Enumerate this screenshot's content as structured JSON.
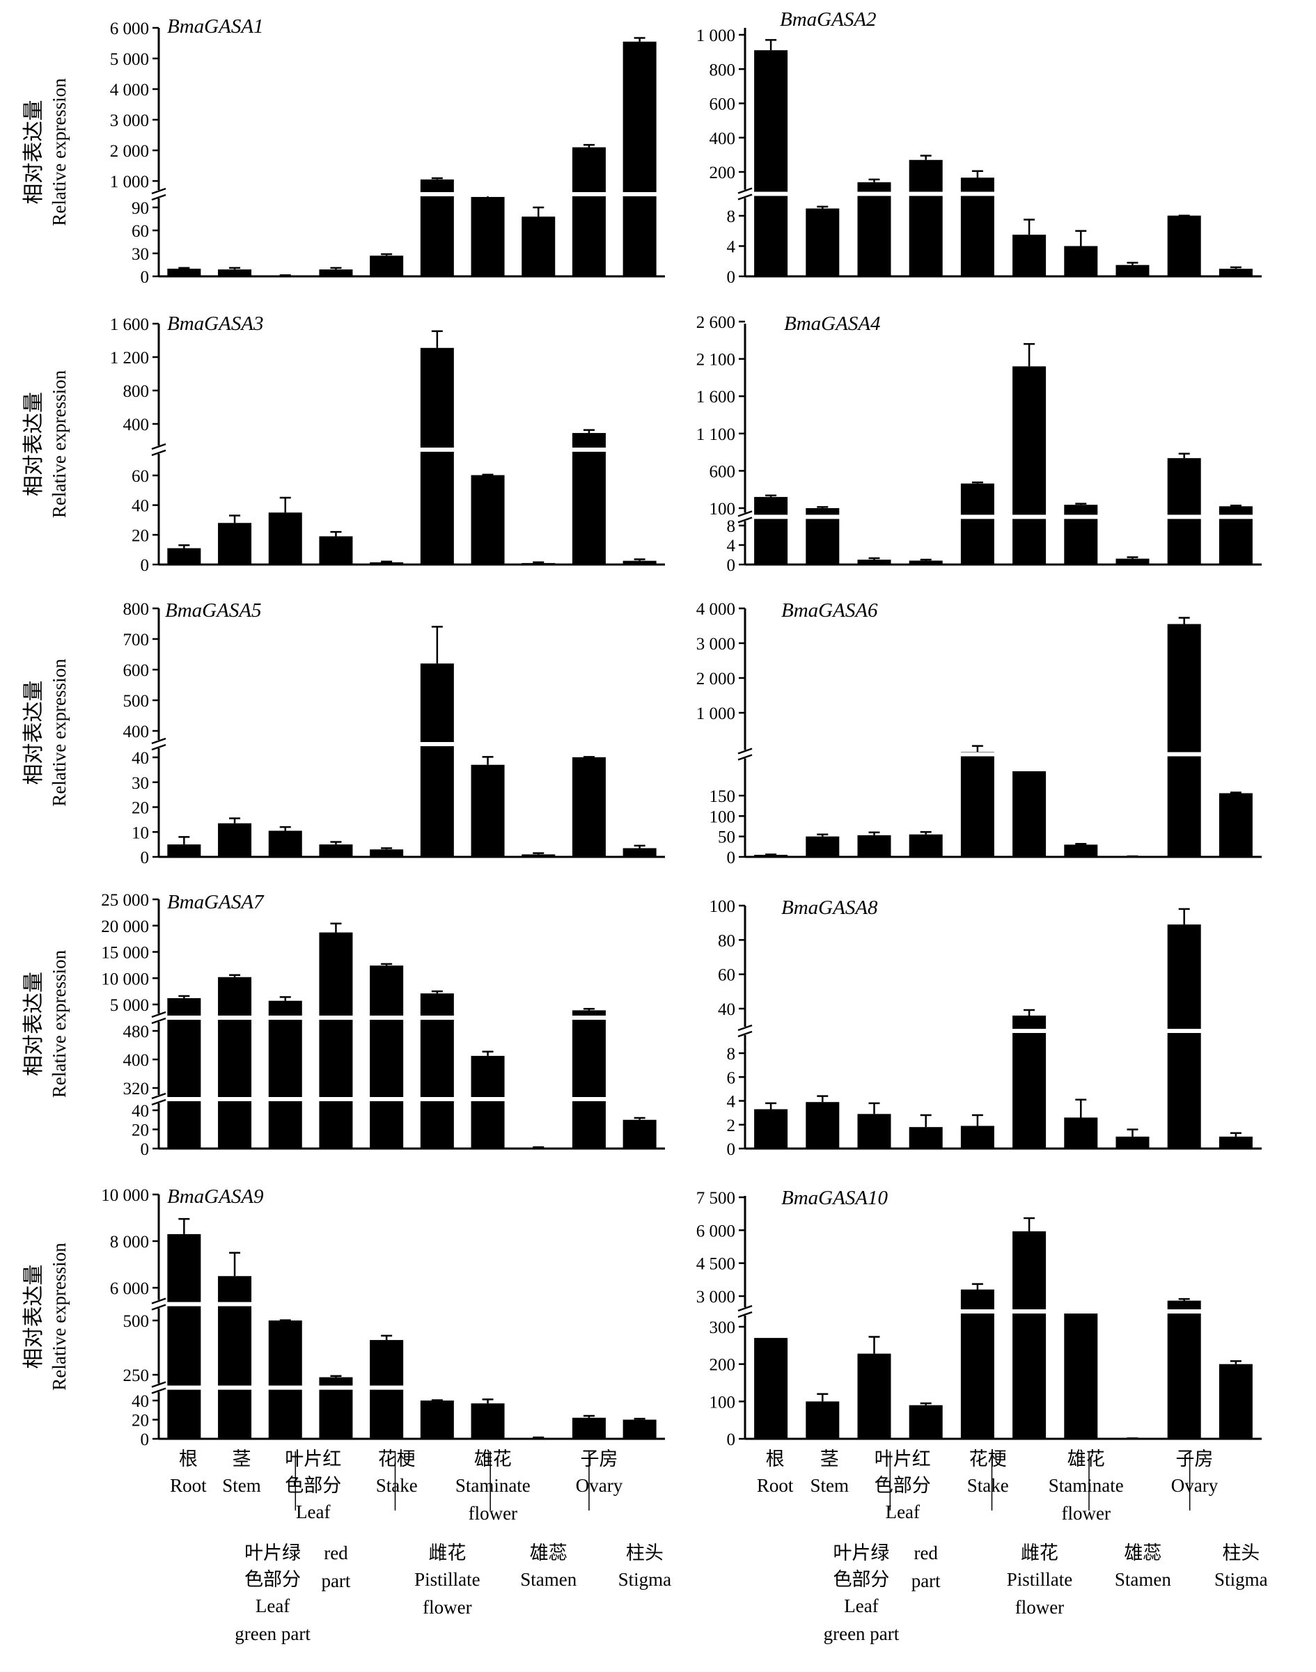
{
  "chart_data": [
    {
      "type": "bar",
      "title": "BmaGASA1",
      "ylabel_cn": "相对表达量",
      "ylabel_en": "Relative expression",
      "categories": [
        "Root",
        "Stem",
        "Leaf green part",
        "Leaf red part",
        "Stake",
        "Pistillate flower",
        "Staminate flower",
        "Stamen",
        "Ovary",
        "Stigma"
      ],
      "values": [
        10,
        9,
        1,
        9,
        27,
        1050,
        450,
        78,
        2100,
        5550
      ],
      "errors": [
        1,
        2,
        0.5,
        2,
        2,
        40,
        60,
        12,
        80,
        120
      ],
      "yticks_lower": [
        "0",
        "30",
        "60",
        "90"
      ],
      "yticks_upper": [
        "1 000",
        "2 000",
        "3 000",
        "4 000",
        "5 000",
        "6 000"
      ],
      "axis_break": [
        100,
        500
      ]
    },
    {
      "type": "bar",
      "title": "BmaGASA2",
      "ylabel_cn": "",
      "ylabel_en": "",
      "categories": [
        "Root",
        "Stem",
        "Leaf green part",
        "Leaf red part",
        "Stake",
        "Pistillate flower",
        "Staminate flower",
        "Stamen",
        "Ovary",
        "Stigma"
      ],
      "values": [
        910,
        40,
        155,
        270,
        175,
        5.5,
        4,
        1.5,
        8.8,
        1
      ],
      "errors": [
        60,
        8,
        12,
        25,
        30,
        2,
        2,
        0.3,
        0.1,
        0.2
      ],
      "yticks_lower": [
        "0",
        "4",
        "8"
      ],
      "yticks_upper": [
        "200",
        "400",
        "600",
        "800",
        "1 000"
      ],
      "axis_break": [
        10,
        100
      ]
    },
    {
      "type": "bar",
      "title": "BmaGASA3",
      "ylabel_cn": "相对表达量",
      "ylabel_en": "Relative expression",
      "categories": [
        "Root",
        "Stem",
        "Leaf green part",
        "Leaf red part",
        "Stake",
        "Pistillate flower",
        "Staminate flower",
        "Stamen",
        "Ovary",
        "Stigma"
      ],
      "values": [
        11,
        28,
        35,
        19,
        1.5,
        1310,
        62,
        1,
        340,
        2.5
      ],
      "errors": [
        2,
        5,
        10,
        3,
        0.5,
        200,
        3,
        0.5,
        20,
        1
      ],
      "yticks_lower": [
        "0",
        "20",
        "40",
        "60"
      ],
      "yticks_upper": [
        "400",
        "800",
        "1 200",
        "1 600"
      ],
      "axis_break": [
        70,
        250
      ]
    },
    {
      "type": "bar",
      "title": "BmaGASA4",
      "ylabel_cn": "",
      "ylabel_en": "",
      "categories": [
        "Root",
        "Stem",
        "Leaf green part",
        "Leaf red part",
        "Stake",
        "Pistillate flower",
        "Staminate flower",
        "Stamen",
        "Ovary",
        "Stigma"
      ],
      "values": [
        250,
        100,
        1,
        0.8,
        430,
        2000,
        145,
        1.2,
        770,
        125
      ],
      "errors": [
        20,
        15,
        0.3,
        0.2,
        15,
        300,
        15,
        0.3,
        60,
        10
      ],
      "yticks_lower": [
        "0",
        "4",
        "8"
      ],
      "yticks_upper": [
        "100",
        "600",
        "1 100",
        "1 600",
        "2 100",
        "2 600"
      ],
      "axis_break": [
        10,
        100
      ]
    },
    {
      "type": "bar",
      "title": "BmaGASA5",
      "ylabel_cn": "相对表达量",
      "ylabel_en": "Relative expression",
      "categories": [
        "Root",
        "Stem",
        "Leaf green part",
        "Leaf red part",
        "Stake",
        "Pistillate flower",
        "Staminate flower",
        "Stamen",
        "Ovary",
        "Stigma"
      ],
      "values": [
        5,
        13.5,
        10.5,
        5,
        3,
        620,
        37,
        1,
        41.5,
        3.5
      ],
      "errors": [
        3,
        2,
        1.5,
        1,
        0.5,
        120,
        9,
        0.5,
        5,
        1
      ],
      "yticks_lower": [
        "0",
        "10",
        "20",
        "30",
        "40"
      ],
      "yticks_upper": [
        "400",
        "500",
        "600",
        "700",
        "800"
      ],
      "axis_break": [
        48,
        400
      ]
    },
    {
      "type": "bar",
      "title": "BmaGASA6",
      "ylabel_cn": "",
      "ylabel_en": "",
      "categories": [
        "Root",
        "Stem",
        "Leaf green part",
        "Leaf red part",
        "Stake",
        "Pistillate flower",
        "Staminate flower",
        "Stamen",
        "Ovary",
        "Stigma"
      ],
      "values": [
        5,
        50,
        53,
        55,
        600,
        400,
        30,
        1,
        3550,
        175
      ],
      "errors": [
        1,
        5,
        7,
        6,
        60,
        0,
        2,
        0.5,
        180,
        7
      ],
      "yticks_lower": [
        "0",
        "50",
        "100",
        "150"
      ],
      "yticks_upper": [
        "1 000",
        "2 000",
        "3 000",
        "4 000"
      ],
      "axis_break": [
        195,
        400
      ]
    },
    {
      "type": "bar",
      "title": "BmaGASA7",
      "ylabel_cn": "相对表达量",
      "ylabel_en": "Relative expression",
      "categories": [
        "Root",
        "Stem",
        "Leaf green part",
        "Leaf red part",
        "Stake",
        "Pistillate flower",
        "Staminate flower",
        "Stamen",
        "Ovary",
        "Stigma"
      ],
      "values": [
        6200,
        10200,
        5700,
        18700,
        12400,
        7100,
        410,
        1,
        4000,
        30
      ],
      "errors": [
        400,
        400,
        700,
        1700,
        300,
        400,
        12,
        0.5,
        250,
        2
      ],
      "yticks_lower": [
        "0",
        "20",
        "40"
      ],
      "yticks_mid": [
        "320",
        "400",
        "480"
      ],
      "yticks_upper": [
        "5 000",
        "10 000",
        "15 000",
        "20 000",
        "25 000"
      ],
      "axis_break": [
        [
          50,
          300
        ],
        [
          490,
          2000
        ]
      ]
    },
    {
      "type": "bar",
      "title": "BmaGASA8",
      "ylabel_cn": "",
      "ylabel_en": "",
      "categories": [
        "Root",
        "Stem",
        "Leaf green part",
        "Leaf red part",
        "Stake",
        "Pistillate flower",
        "Staminate flower",
        "Stamen",
        "Ovary",
        "Stigma"
      ],
      "values": [
        3.3,
        3.9,
        2.9,
        1.8,
        1.9,
        35,
        2.6,
        1,
        89,
        1
      ],
      "errors": [
        0.5,
        0.5,
        0.9,
        1,
        0.9,
        4,
        1.5,
        0.6,
        9,
        0.3
      ],
      "yticks_lower": [
        "0",
        "2",
        "4",
        "6",
        "8"
      ],
      "yticks_upper": [
        "40",
        "60",
        "80",
        "100"
      ],
      "axis_break": [
        10,
        30
      ]
    },
    {
      "type": "bar",
      "title": "BmaGASA9",
      "ylabel_cn": "相对表达量",
      "ylabel_en": "Relative expression",
      "categories": [
        "Root",
        "Stem",
        "Leaf green part",
        "Leaf red part",
        "Stake",
        "Pistillate flower",
        "Staminate flower",
        "Stamen",
        "Ovary",
        "Stigma"
      ],
      "values": [
        8300,
        6500,
        500,
        230,
        410,
        40,
        37,
        1,
        22,
        20
      ],
      "errors": [
        650,
        1000,
        50,
        10,
        20,
        3,
        12,
        0.5,
        2,
        1
      ],
      "yticks_lower": [
        "0",
        "20",
        "40"
      ],
      "yticks_mid": [
        "250",
        "500"
      ],
      "yticks_upper": [
        "6 000",
        "8 000",
        "10 000"
      ],
      "axis_break": [
        [
          50,
          180
        ],
        [
          560,
          5000
        ]
      ]
    },
    {
      "type": "bar",
      "title": "BmaGASA10",
      "ylabel_cn": "",
      "ylabel_en": "",
      "categories": [
        "Root",
        "Stem",
        "Leaf green part",
        "Leaf red part",
        "Stake",
        "Pistillate flower",
        "Staminate flower",
        "Stamen",
        "Ovary",
        "Stigma"
      ],
      "values": [
        270,
        100,
        228,
        90,
        3300,
        5950,
        1500,
        1,
        2600,
        200
      ],
      "errors": [
        0,
        20,
        45,
        5,
        250,
        600,
        0,
        0.5,
        150,
        8
      ],
      "yticks_lower": [
        "0",
        "100",
        "200",
        "300"
      ],
      "yticks_upper": [
        "3 000",
        "4 500",
        "6 000",
        "7 500"
      ],
      "axis_break": [
        360,
        1500
      ]
    }
  ],
  "xaxis": {
    "row1": [
      {
        "cn": "根",
        "en": [
          "Root"
        ]
      },
      {
        "cn": "茎",
        "en": [
          "Stem"
        ]
      },
      {
        "cn": "叶片红\n色部分",
        "en": [
          "Leaf"
        ]
      },
      {
        "cn": "花梗",
        "en": [
          "Stake"
        ]
      },
      {
        "cn": "雄花",
        "en": [
          "Staminate",
          "flower"
        ]
      },
      {
        "cn": "子房",
        "en": [
          "Ovary"
        ]
      }
    ],
    "row2": [
      {
        "cn": "叶片绿\n色部分",
        "en": [
          "Leaf",
          "green part"
        ]
      },
      {
        "cn": "",
        "en": [
          "red",
          "part"
        ]
      },
      {
        "cn": "雌花",
        "en": [
          "Pistillate",
          "flower"
        ]
      },
      {
        "cn": "雄蕊",
        "en": [
          "Stamen"
        ]
      },
      {
        "cn": "柱头",
        "en": [
          "Stigma"
        ]
      }
    ]
  }
}
